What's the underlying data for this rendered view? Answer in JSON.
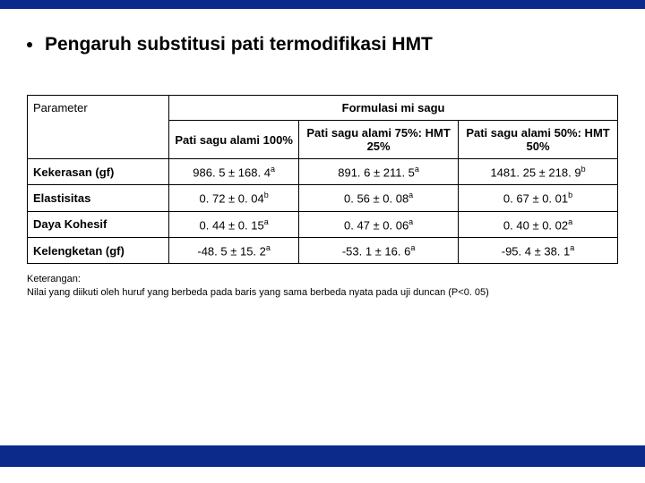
{
  "colors": {
    "brand_blue": "#0b2a8a",
    "text": "#000000",
    "bg": "#ffffff",
    "border": "#000000"
  },
  "title": "Pengaruh substitusi pati termodifikasi HMT",
  "table": {
    "param_header": "Parameter",
    "group_header": "Formulasi mi sagu",
    "columns": [
      "Pati sagu alami 100%",
      "Pati sagu alami 75%: HMT 25%",
      "Pati sagu alami 50%: HMT 50%"
    ],
    "rows": [
      {
        "param": "Kekerasan (gf)",
        "cells": [
          {
            "v": "986. 5 ± 168. 4",
            "s": "a"
          },
          {
            "v": "891. 6 ± 211. 5",
            "s": "a"
          },
          {
            "v": "1481. 25 ± 218. 9",
            "s": "b"
          }
        ]
      },
      {
        "param": "Elastisitas",
        "cells": [
          {
            "v": "0. 72 ± 0. 04",
            "s": "b"
          },
          {
            "v": "0. 56 ± 0. 08",
            "s": "a"
          },
          {
            "v": "0. 67 ± 0. 01",
            "s": "b"
          }
        ]
      },
      {
        "param": "Daya Kohesif",
        "cells": [
          {
            "v": "0. 44 ± 0. 15",
            "s": "a"
          },
          {
            "v": "0. 47 ± 0. 06",
            "s": "a"
          },
          {
            "v": "0. 40 ± 0. 02",
            "s": "a"
          }
        ]
      },
      {
        "param": "Kelengketan (gf)",
        "cells": [
          {
            "v": "-48. 5 ± 15. 2",
            "s": "a"
          },
          {
            "v": "-53. 1 ± 16. 6",
            "s": "a"
          },
          {
            "v": "-95. 4 ± 38. 1",
            "s": "a"
          }
        ]
      }
    ]
  },
  "note": {
    "l1": "Keterangan:",
    "l2": "Nilai yang diikuti oleh huruf yang berbeda pada baris yang sama berbeda nyata pada uji duncan (P<0. 05)"
  }
}
